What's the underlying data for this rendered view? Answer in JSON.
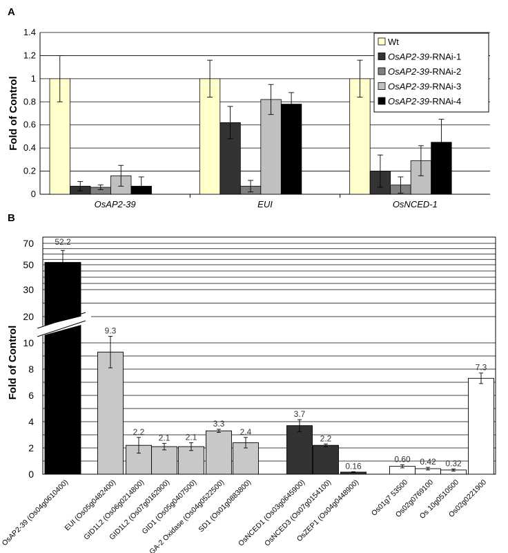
{
  "panel_labels": {
    "a": "A",
    "b": "B"
  },
  "chart_data": [
    {
      "type": "bar",
      "panel": "A",
      "ylabel": "Fold of Control",
      "ylim": [
        0,
        1.4
      ],
      "yticks": [
        "0",
        "0.2",
        "0.4",
        "0.6",
        "0.8",
        "1",
        "1.2",
        "1.4"
      ],
      "grid": true,
      "legend_position": "top-right",
      "categories": [
        "OsAP2-39",
        "EUI",
        "OsNCED-1"
      ],
      "series": [
        {
          "name_italic": "",
          "name_rest": "Wt",
          "color": "#ffffcc",
          "values": [
            1.0,
            1.0,
            1.0
          ],
          "errors": [
            0.2,
            0.16,
            0.16
          ]
        },
        {
          "name_italic": "OsAP2-39",
          "name_rest": "-RNAi-1",
          "color": "#333333",
          "values": [
            0.07,
            0.62,
            0.2
          ],
          "errors": [
            0.04,
            0.14,
            0.14
          ]
        },
        {
          "name_italic": "OsAP2-39",
          "name_rest": "-RNAi-2",
          "color": "#808080",
          "values": [
            0.06,
            0.07,
            0.08
          ],
          "errors": [
            0.02,
            0.05,
            0.07
          ]
        },
        {
          "name_italic": "OsAP2-39",
          "name_rest": "-RNAi-3",
          "color": "#c0c0c0",
          "values": [
            0.16,
            0.82,
            0.29
          ],
          "errors": [
            0.09,
            0.13,
            0.13
          ]
        },
        {
          "name_italic": "OsAP2-39",
          "name_rest": "-RNAi-4",
          "color": "#000000",
          "values": [
            0.07,
            0.78,
            0.45
          ],
          "errors": [
            0.08,
            0.1,
            0.2
          ]
        }
      ]
    },
    {
      "type": "bar",
      "panel": "B",
      "ylabel": "Fold of Control",
      "axis_break": true,
      "yticks_lower": [
        "0",
        "2",
        "4",
        "6",
        "8",
        "10"
      ],
      "yticks_upper": [
        "20",
        "30",
        "50",
        "70"
      ],
      "grid": true,
      "categories": [
        "OsAP2-39 (Os04g0610400)",
        "EUI (Os05g0482400)",
        "GID1L2 (Os06g0214800)",
        "GID1L2 (Os07g0162900)",
        "GID1 (Os05g0407500)",
        "GA-2 Oxidase (Os04g0522500)",
        "SD1 (Os01g0883800)",
        "OsNCED1 (Os03g0645900)",
        "OsNCED3 (Os07g0154100)",
        "OsZEP1 (Os04g0448900)",
        "Os01g7 53500",
        "Os02g0769100",
        "Os 10g0510500",
        "Os02g0221900"
      ],
      "values": [
        52.2,
        9.3,
        2.2,
        2.1,
        2.1,
        3.3,
        2.4,
        3.7,
        2.2,
        0.16,
        0.6,
        0.42,
        0.32,
        7.3
      ],
      "value_labels": [
        "52.2",
        "9.3",
        "2.2",
        "2.1",
        "2.1",
        "3.3",
        "2.4",
        "3.7",
        "2.2",
        "0.16",
        "0.60",
        "0.42",
        "0.32",
        "7.3"
      ],
      "errors": [
        6,
        1.2,
        0.6,
        0.25,
        0.3,
        0.12,
        0.4,
        0.45,
        0.1,
        0.03,
        0.12,
        0.1,
        0.08,
        0.4
      ],
      "colors": [
        "#000000",
        "#c8c8c8",
        "#c8c8c8",
        "#c8c8c8",
        "#c8c8c8",
        "#c8c8c8",
        "#c8c8c8",
        "#333333",
        "#333333",
        "#333333",
        "#ffffff",
        "#ffffff",
        "#ffffff",
        "#ffffff"
      ]
    }
  ]
}
